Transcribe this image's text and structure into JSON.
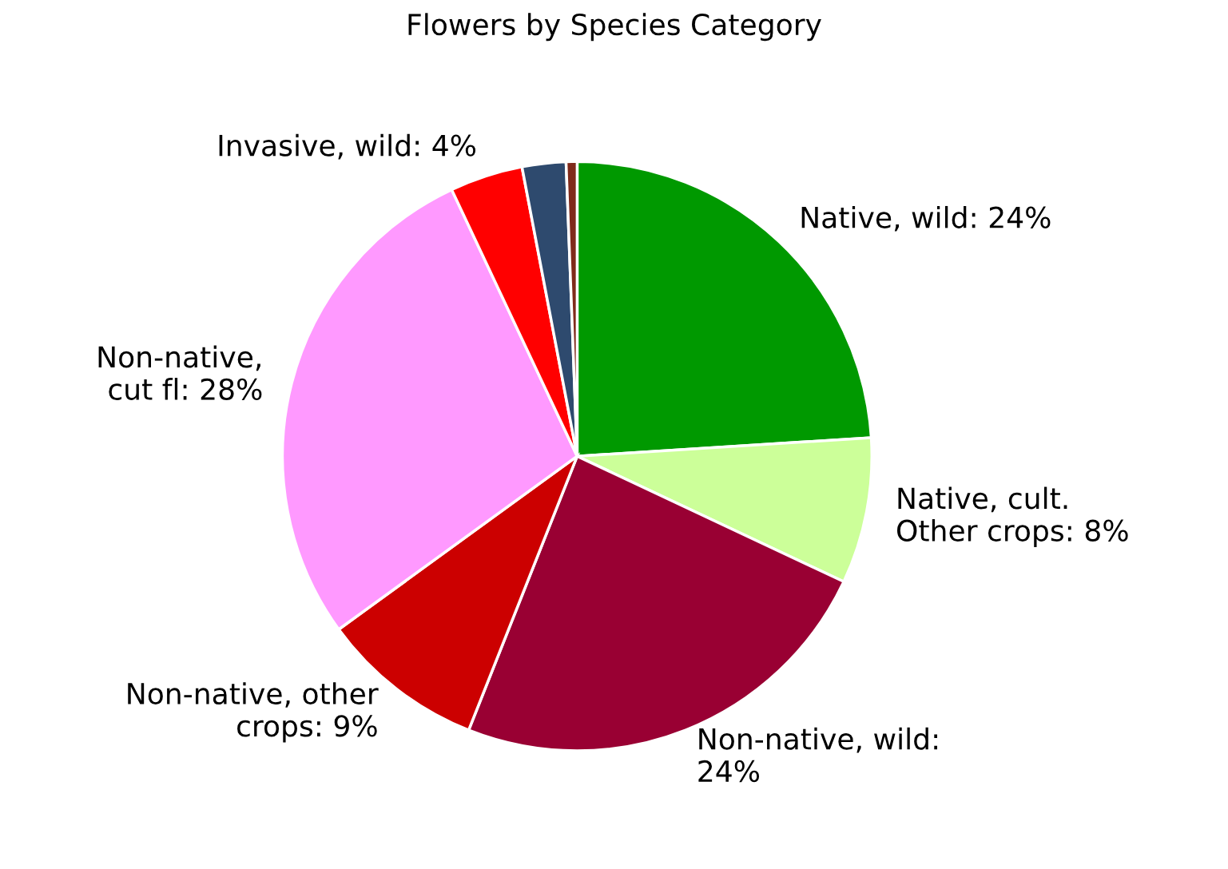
{
  "chart_data": {
    "type": "pie",
    "title": "Flowers by Species Category",
    "categories": [
      "Native, wild: 24%",
      "Native, cult.\nOther crops: 8%",
      "Non-native, wild:\n24%",
      "Non-native, other\ncrops: 9%",
      "Non-native,\ncut fl: 28%",
      "Invasive, wild: 4%",
      null,
      null
    ],
    "values": [
      24,
      8,
      24,
      9,
      28,
      4,
      2.4,
      0.6
    ],
    "colors": [
      "#009900",
      "#ccff99",
      "#990033",
      "#cc0000",
      "#ff99ff",
      "#ff0000",
      "#2e4a6e",
      "#7f2a1a"
    ]
  }
}
